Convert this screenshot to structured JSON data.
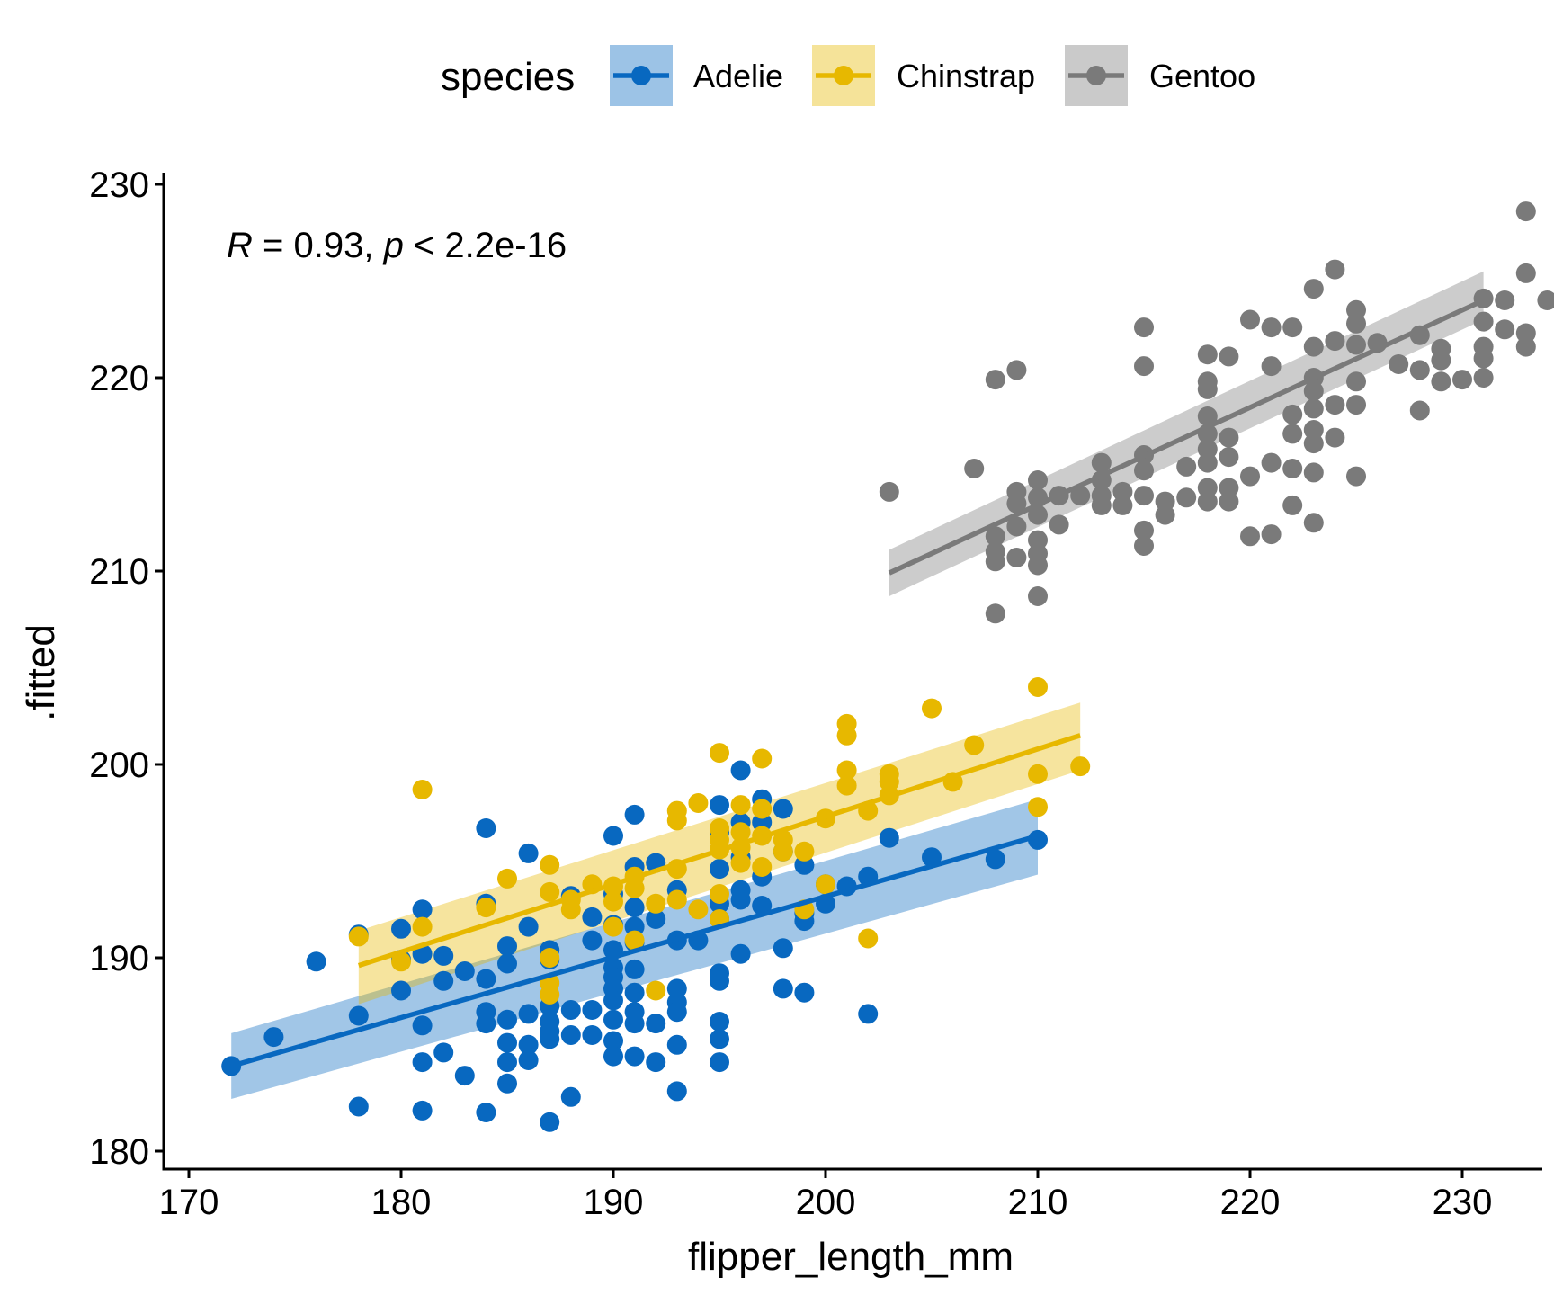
{
  "chart_data": {
    "type": "scatter",
    "xlabel": "flipper_length_mm",
    "ylabel": ".fitted",
    "xlim": [
      170,
      230
    ],
    "ylim": [
      180,
      230
    ],
    "x_ticks": [
      170,
      180,
      190,
      200,
      210,
      220,
      230
    ],
    "y_ticks": [
      180,
      190,
      200,
      210,
      220,
      230
    ],
    "x_tick_labels": [
      "170",
      "180",
      "190",
      "200",
      "210",
      "220",
      "230"
    ],
    "y_tick_labels": [
      "180",
      "190",
      "200",
      "210",
      "220",
      "230"
    ],
    "annotation": {
      "r_symbol": "R",
      "r_text": " = 0.93, ",
      "p_symbol": "p",
      "p_text": " < 2.2e-16"
    },
    "legend": {
      "title": "species",
      "position": "top"
    },
    "grid": false,
    "series": [
      {
        "name": "Adelie",
        "color": "#0868C0",
        "fit": {
          "x": [
            172,
            210
          ],
          "y": [
            184.4,
            196.3
          ]
        },
        "band_lower": [
          182.7,
          194.3
        ],
        "band_upper": [
          186.1,
          198.2
        ],
        "points": [
          [
            172,
            184.4
          ],
          [
            174,
            185.9
          ],
          [
            176,
            189.8
          ],
          [
            178,
            187.0
          ],
          [
            178,
            182.3
          ],
          [
            178,
            191.2
          ],
          [
            180,
            188.3
          ],
          [
            180,
            189.9
          ],
          [
            180,
            191.5
          ],
          [
            181,
            192.5
          ],
          [
            181,
            186.5
          ],
          [
            181,
            184.6
          ],
          [
            181,
            182.1
          ],
          [
            181,
            190.2
          ],
          [
            182,
            190.1
          ],
          [
            182,
            188.8
          ],
          [
            182,
            185.1
          ],
          [
            183,
            189.3
          ],
          [
            183,
            183.9
          ],
          [
            184,
            196.7
          ],
          [
            184,
            192.8
          ],
          [
            184,
            188.9
          ],
          [
            184,
            187.2
          ],
          [
            184,
            186.6
          ],
          [
            184,
            182.0
          ],
          [
            185,
            190.6
          ],
          [
            185,
            189.7
          ],
          [
            185,
            186.8
          ],
          [
            185,
            185.6
          ],
          [
            185,
            184.6
          ],
          [
            185,
            183.5
          ],
          [
            186,
            195.4
          ],
          [
            186,
            191.6
          ],
          [
            186,
            187.1
          ],
          [
            186,
            185.5
          ],
          [
            186,
            184.7
          ],
          [
            187,
            190.4
          ],
          [
            187,
            189.9
          ],
          [
            187,
            187.5
          ],
          [
            187,
            186.7
          ],
          [
            187,
            186.2
          ],
          [
            187,
            185.8
          ],
          [
            187,
            181.5
          ],
          [
            188,
            193.2
          ],
          [
            188,
            187.3
          ],
          [
            188,
            186.0
          ],
          [
            188,
            182.8
          ],
          [
            189,
            192.1
          ],
          [
            189,
            190.9
          ],
          [
            189,
            187.3
          ],
          [
            189,
            186.0
          ],
          [
            190,
            196.3
          ],
          [
            190,
            193.3
          ],
          [
            190,
            191.7
          ],
          [
            190,
            190.4
          ],
          [
            190,
            189.5
          ],
          [
            190,
            189.0
          ],
          [
            190,
            188.4
          ],
          [
            190,
            187.8
          ],
          [
            190,
            186.8
          ],
          [
            190,
            185.7
          ],
          [
            190,
            184.9
          ],
          [
            191,
            197.4
          ],
          [
            191,
            194.7
          ],
          [
            191,
            192.6
          ],
          [
            191,
            191.6
          ],
          [
            191,
            190.8
          ],
          [
            191,
            189.4
          ],
          [
            191,
            188.2
          ],
          [
            191,
            187.2
          ],
          [
            191,
            186.6
          ],
          [
            191,
            184.9
          ],
          [
            192,
            194.9
          ],
          [
            192,
            192.0
          ],
          [
            192,
            186.6
          ],
          [
            192,
            184.6
          ],
          [
            193,
            193.5
          ],
          [
            193,
            190.9
          ],
          [
            193,
            188.4
          ],
          [
            193,
            187.7
          ],
          [
            193,
            187.2
          ],
          [
            193,
            185.5
          ],
          [
            193,
            183.1
          ],
          [
            194,
            190.9
          ],
          [
            195,
            197.9
          ],
          [
            195,
            196.5
          ],
          [
            195,
            194.6
          ],
          [
            195,
            192.8
          ],
          [
            195,
            192.0
          ],
          [
            195,
            189.2
          ],
          [
            195,
            188.8
          ],
          [
            195,
            186.7
          ],
          [
            195,
            185.8
          ],
          [
            195,
            184.6
          ],
          [
            196,
            199.7
          ],
          [
            196,
            197.0
          ],
          [
            196,
            195.2
          ],
          [
            196,
            193.5
          ],
          [
            196,
            193.0
          ],
          [
            196,
            190.2
          ],
          [
            197,
            198.2
          ],
          [
            197,
            197.0
          ],
          [
            197,
            194.2
          ],
          [
            197,
            192.7
          ],
          [
            198,
            197.7
          ],
          [
            198,
            195.5
          ],
          [
            198,
            190.5
          ],
          [
            198,
            188.4
          ],
          [
            199,
            194.8
          ],
          [
            199,
            192.3
          ],
          [
            199,
            191.9
          ],
          [
            199,
            188.2
          ],
          [
            200,
            193.8
          ],
          [
            200,
            192.8
          ],
          [
            201,
            193.7
          ],
          [
            202,
            194.2
          ],
          [
            202,
            187.1
          ],
          [
            203,
            196.2
          ],
          [
            205,
            195.2
          ],
          [
            208,
            195.1
          ],
          [
            210,
            196.1
          ]
        ]
      },
      {
        "name": "Chinstrap",
        "color": "#E7B800",
        "fit": {
          "x": [
            178,
            212
          ],
          "y": [
            189.6,
            201.5
          ]
        },
        "band_lower": [
          187.6,
          199.7
        ],
        "band_upper": [
          191.4,
          203.2
        ],
        "points": [
          [
            178,
            191.1
          ],
          [
            180,
            189.8
          ],
          [
            181,
            198.7
          ],
          [
            181,
            191.6
          ],
          [
            184,
            192.6
          ],
          [
            185,
            194.1
          ],
          [
            187,
            194.8
          ],
          [
            187,
            193.4
          ],
          [
            187,
            190.0
          ],
          [
            187,
            188.7
          ],
          [
            187,
            188.1
          ],
          [
            188,
            193.0
          ],
          [
            188,
            192.5
          ],
          [
            189,
            193.8
          ],
          [
            190,
            193.7
          ],
          [
            190,
            192.9
          ],
          [
            190,
            191.6
          ],
          [
            191,
            194.2
          ],
          [
            191,
            193.6
          ],
          [
            191,
            190.9
          ],
          [
            192,
            192.8
          ],
          [
            192,
            188.3
          ],
          [
            193,
            197.6
          ],
          [
            193,
            197.1
          ],
          [
            193,
            194.6
          ],
          [
            193,
            193.0
          ],
          [
            194,
            198.0
          ],
          [
            194,
            192.5
          ],
          [
            195,
            200.6
          ],
          [
            195,
            196.7
          ],
          [
            195,
            196.1
          ],
          [
            195,
            195.6
          ],
          [
            195,
            193.3
          ],
          [
            195,
            192.0
          ],
          [
            196,
            197.9
          ],
          [
            196,
            196.5
          ],
          [
            196,
            195.7
          ],
          [
            196,
            194.9
          ],
          [
            197,
            200.3
          ],
          [
            197,
            197.7
          ],
          [
            197,
            196.3
          ],
          [
            197,
            194.7
          ],
          [
            198,
            196.1
          ],
          [
            198,
            195.5
          ],
          [
            199,
            195.5
          ],
          [
            199,
            192.5
          ],
          [
            200,
            197.2
          ],
          [
            200,
            193.8
          ],
          [
            201,
            202.1
          ],
          [
            201,
            201.5
          ],
          [
            201,
            199.7
          ],
          [
            201,
            198.9
          ],
          [
            202,
            197.6
          ],
          [
            202,
            191.0
          ],
          [
            203,
            199.5
          ],
          [
            203,
            199.1
          ],
          [
            203,
            198.4
          ],
          [
            205,
            202.9
          ],
          [
            206,
            199.1
          ],
          [
            207,
            201.0
          ],
          [
            210,
            204.0
          ],
          [
            210,
            199.5
          ],
          [
            210,
            197.8
          ],
          [
            212,
            199.9
          ]
        ]
      },
      {
        "name": "Gentoo",
        "color": "#7A7A7A",
        "fit": {
          "x": [
            203,
            231
          ],
          "y": [
            209.9,
            224.0
          ]
        },
        "band_lower": [
          208.7,
          223.0
        ],
        "band_upper": [
          211.1,
          225.5
        ],
        "points": [
          [
            203,
            214.1
          ],
          [
            207,
            215.3
          ],
          [
            208,
            219.9
          ],
          [
            208,
            211.8
          ],
          [
            208,
            211.0
          ],
          [
            208,
            210.5
          ],
          [
            208,
            207.8
          ],
          [
            209,
            220.4
          ],
          [
            209,
            214.1
          ],
          [
            209,
            213.5
          ],
          [
            209,
            212.3
          ],
          [
            209,
            210.7
          ],
          [
            210,
            214.7
          ],
          [
            210,
            213.8
          ],
          [
            210,
            212.9
          ],
          [
            210,
            211.6
          ],
          [
            210,
            210.9
          ],
          [
            210,
            210.3
          ],
          [
            210,
            208.7
          ],
          [
            211,
            213.9
          ],
          [
            211,
            212.4
          ],
          [
            212,
            213.9
          ],
          [
            213,
            215.6
          ],
          [
            213,
            214.7
          ],
          [
            213,
            213.9
          ],
          [
            213,
            213.4
          ],
          [
            214,
            214.1
          ],
          [
            214,
            213.4
          ],
          [
            215,
            222.6
          ],
          [
            215,
            220.6
          ],
          [
            215,
            216.0
          ],
          [
            215,
            215.2
          ],
          [
            215,
            213.9
          ],
          [
            215,
            212.1
          ],
          [
            215,
            211.3
          ],
          [
            216,
            213.6
          ],
          [
            216,
            212.9
          ],
          [
            217,
            215.4
          ],
          [
            217,
            213.8
          ],
          [
            218,
            221.2
          ],
          [
            218,
            219.8
          ],
          [
            218,
            219.4
          ],
          [
            218,
            218.0
          ],
          [
            218,
            217.1
          ],
          [
            218,
            216.3
          ],
          [
            218,
            215.6
          ],
          [
            218,
            214.3
          ],
          [
            218,
            213.6
          ],
          [
            219,
            221.1
          ],
          [
            219,
            216.9
          ],
          [
            219,
            215.9
          ],
          [
            219,
            214.3
          ],
          [
            219,
            213.6
          ],
          [
            220,
            223.0
          ],
          [
            220,
            214.9
          ],
          [
            220,
            211.8
          ],
          [
            221,
            222.6
          ],
          [
            221,
            220.6
          ],
          [
            221,
            215.6
          ],
          [
            221,
            211.9
          ],
          [
            222,
            222.6
          ],
          [
            222,
            218.1
          ],
          [
            222,
            217.1
          ],
          [
            222,
            215.3
          ],
          [
            222,
            213.4
          ],
          [
            223,
            224.6
          ],
          [
            223,
            221.6
          ],
          [
            223,
            220.0
          ],
          [
            223,
            219.3
          ],
          [
            223,
            218.4
          ],
          [
            223,
            217.3
          ],
          [
            223,
            216.6
          ],
          [
            223,
            215.1
          ],
          [
            223,
            212.5
          ],
          [
            224,
            225.6
          ],
          [
            224,
            221.9
          ],
          [
            224,
            218.6
          ],
          [
            224,
            216.9
          ],
          [
            225,
            223.5
          ],
          [
            225,
            222.8
          ],
          [
            225,
            221.7
          ],
          [
            225,
            219.8
          ],
          [
            225,
            218.6
          ],
          [
            225,
            214.9
          ],
          [
            226,
            221.8
          ],
          [
            227,
            220.7
          ],
          [
            228,
            222.2
          ],
          [
            228,
            220.4
          ],
          [
            228,
            218.3
          ],
          [
            229,
            221.5
          ],
          [
            229,
            220.9
          ],
          [
            229,
            219.8
          ],
          [
            230,
            219.9
          ],
          [
            231,
            224.1
          ],
          [
            231,
            222.9
          ],
          [
            231,
            221.6
          ],
          [
            231,
            221.0
          ],
          [
            231,
            220.0
          ],
          [
            232,
            224.0
          ],
          [
            232,
            222.5
          ],
          [
            233,
            228.6
          ],
          [
            233,
            225.4
          ],
          [
            233,
            222.3
          ],
          [
            233,
            221.6
          ],
          [
            234,
            224.0
          ]
        ]
      }
    ]
  }
}
